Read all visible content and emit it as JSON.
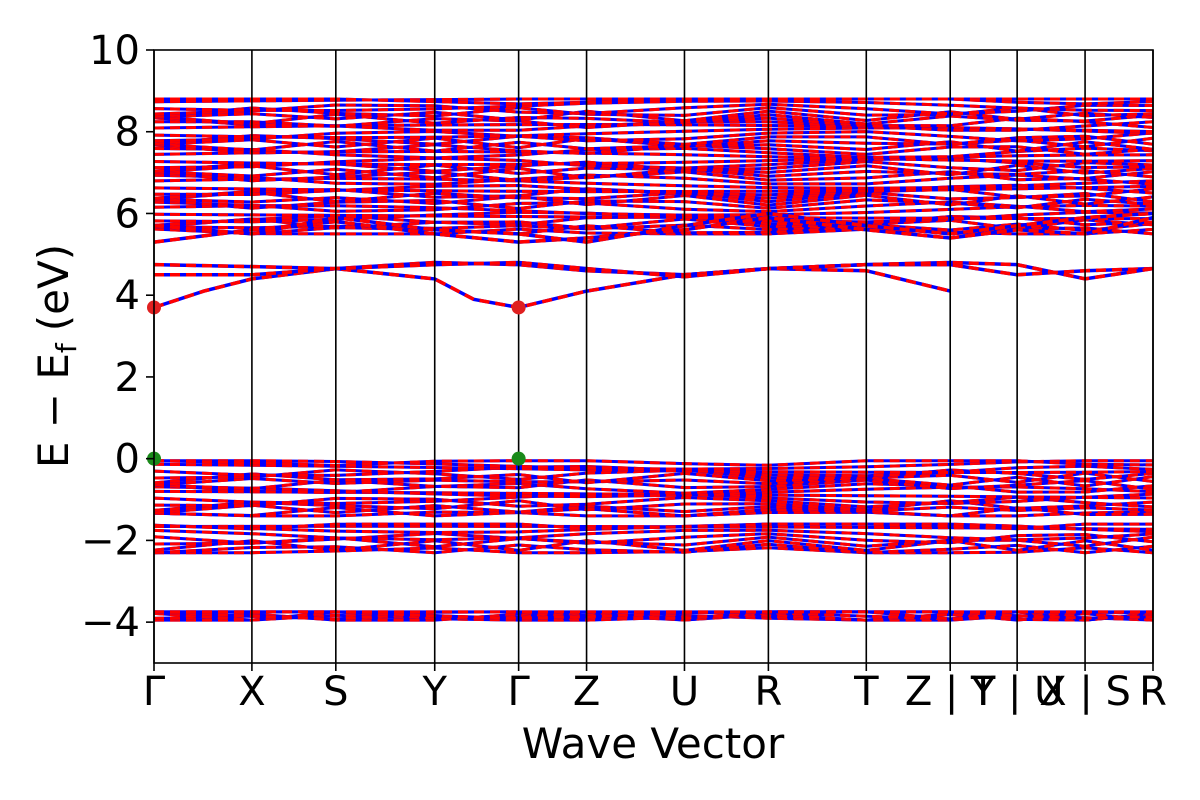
{
  "chart_data": {
    "type": "line",
    "title": "",
    "xlabel": "Wave Vector",
    "ylabel": "E − E_f (eV)",
    "ylabel_parts": {
      "main": "E − E",
      "sub": "f",
      "unit": "(eV)"
    },
    "ylim": [
      -5,
      10
    ],
    "yticks": [
      -4,
      -2,
      0,
      2,
      4,
      6,
      8,
      10
    ],
    "ytick_labels": [
      "−4",
      "−2",
      "0",
      "2",
      "4",
      "6",
      "8",
      "10"
    ],
    "xlim": [
      0,
      10
    ],
    "high_symmetry_points": [
      {
        "label": "Γ",
        "x": 0.0
      },
      {
        "label": "X",
        "x": 0.98
      },
      {
        "label": "S",
        "x": 1.82
      },
      {
        "label": "Y",
        "x": 2.81
      },
      {
        "label": "Γ",
        "x": 3.65
      },
      {
        "label": "Z",
        "x": 4.33
      },
      {
        "label": "U",
        "x": 5.31
      },
      {
        "label": "R",
        "x": 6.15
      },
      {
        "label": "T",
        "x": 7.13
      },
      {
        "label": "Z | Y",
        "x": 7.97
      },
      {
        "label": "T | U",
        "x": 8.64
      },
      {
        "label": "X | S",
        "x": 9.32
      },
      {
        "label": "R",
        "x": 10.0
      }
    ],
    "grid": false,
    "series": [
      {
        "color": "#0000ff",
        "style": "solid"
      },
      {
        "color": "#ff0000",
        "style": "dashed"
      }
    ],
    "band_regions": [
      {
        "range": [
          5.5,
          8.8
        ]
      },
      {
        "range": [
          -0.05,
          -1.4
        ]
      },
      {
        "range": [
          -1.6,
          -2.3
        ]
      },
      {
        "range": [
          -3.75,
          -3.95
        ]
      }
    ],
    "conduction_bands": [
      {
        "points": [
          [
            0,
            3.7
          ],
          [
            0.5,
            4.1
          ],
          [
            0.98,
            4.4
          ],
          [
            1.82,
            4.65
          ],
          [
            2.81,
            4.4
          ],
          [
            3.2,
            3.9
          ],
          [
            3.65,
            3.7
          ],
          [
            4.33,
            4.1
          ],
          [
            5.31,
            4.5
          ],
          [
            6.15,
            4.65
          ],
          [
            7.13,
            4.6
          ],
          [
            7.97,
            4.1
          ]
        ]
      },
      {
        "points": [
          [
            0,
            4.5
          ],
          [
            0.98,
            4.5
          ],
          [
            1.82,
            4.65
          ],
          [
            2.81,
            4.8
          ],
          [
            3.65,
            4.75
          ],
          [
            4.33,
            4.6
          ],
          [
            5.31,
            4.5
          ],
          [
            6.15,
            4.65
          ],
          [
            7.13,
            4.75
          ],
          [
            7.97,
            4.75
          ],
          [
            8.64,
            4.5
          ],
          [
            9.32,
            4.6
          ],
          [
            10.0,
            4.65
          ]
        ]
      },
      {
        "points": [
          [
            0,
            4.75
          ],
          [
            0.98,
            4.7
          ],
          [
            1.82,
            4.65
          ],
          [
            2.81,
            4.75
          ],
          [
            3.65,
            4.8
          ],
          [
            4.33,
            4.65
          ],
          [
            5.31,
            4.45
          ],
          [
            6.15,
            4.65
          ],
          [
            7.13,
            4.75
          ],
          [
            7.97,
            4.8
          ],
          [
            8.64,
            4.75
          ],
          [
            9.32,
            4.4
          ],
          [
            10.0,
            4.65
          ]
        ]
      },
      {
        "points": [
          [
            0,
            5.3
          ],
          [
            0.98,
            5.6
          ],
          [
            1.82,
            5.8
          ],
          [
            2.81,
            5.5
          ],
          [
            3.65,
            5.3
          ],
          [
            4.33,
            5.4
          ],
          [
            5.31,
            5.6
          ],
          [
            6.15,
            5.9
          ],
          [
            7.13,
            5.6
          ],
          [
            7.97,
            5.4
          ],
          [
            8.64,
            5.6
          ],
          [
            9.32,
            5.5
          ],
          [
            10.0,
            5.9
          ]
        ]
      },
      {
        "points": [
          [
            0,
            5.7
          ],
          [
            0.98,
            5.5
          ],
          [
            1.82,
            5.9
          ],
          [
            2.81,
            5.6
          ],
          [
            3.65,
            5.5
          ],
          [
            4.33,
            5.3
          ],
          [
            5.31,
            5.7
          ],
          [
            6.15,
            6.0
          ],
          [
            7.13,
            5.7
          ],
          [
            7.97,
            5.5
          ],
          [
            8.64,
            5.7
          ],
          [
            9.32,
            5.9
          ],
          [
            10.0,
            6.0
          ]
        ]
      }
    ],
    "markers": [
      {
        "x": 0.0,
        "y": 3.7,
        "color": "#e02020"
      },
      {
        "x": 3.65,
        "y": 3.7,
        "color": "#e02020"
      },
      {
        "x": 0.0,
        "y": 0.0,
        "color": "#1a8a1a"
      },
      {
        "x": 3.65,
        "y": 0.0,
        "color": "#1a8a1a"
      }
    ]
  }
}
